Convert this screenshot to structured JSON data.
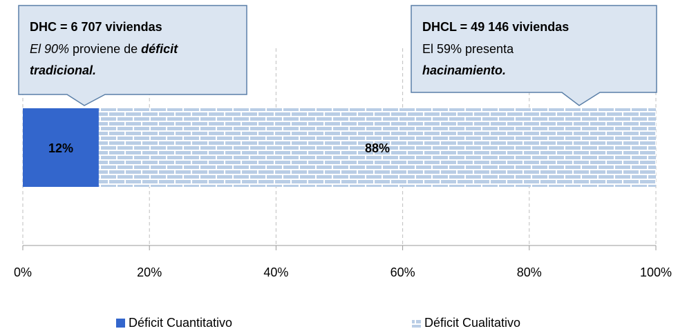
{
  "chart_data": {
    "type": "stacked_bar_horizontal",
    "categories": [
      null
    ],
    "series": [
      {
        "name": "Déficit Cuantitativo",
        "color": "#3366cc",
        "values": [
          12
        ],
        "value_labels": [
          "12%"
        ],
        "label_color": "#ffffff"
      },
      {
        "name": "Déficit Cualitativo",
        "color": "#b9cde5",
        "pattern": "brick",
        "values": [
          88
        ],
        "value_labels": [
          "88%"
        ],
        "label_color": "#000000"
      }
    ],
    "xlim": [
      0,
      100
    ],
    "xticks": [
      {
        "value": 0,
        "label": "0%"
      },
      {
        "value": 20,
        "label": "20%"
      },
      {
        "value": 40,
        "label": "40%"
      },
      {
        "value": 60,
        "label": "60%"
      },
      {
        "value": 80,
        "label": "80%"
      },
      {
        "value": 100,
        "label": "100%"
      }
    ],
    "grid": true,
    "legend": "bottom",
    "annotations": [
      {
        "title": "DHC = 6 707 viviendas",
        "lines": [
          [
            {
              "text": "El 90%",
              "style": "italic"
            },
            {
              "text": " proviene de ",
              "style": "normal"
            },
            {
              "text": "déficit",
              "style": "bold-italic"
            }
          ],
          [
            {
              "text": "tradicional.",
              "style": "bold-italic"
            }
          ]
        ]
      },
      {
        "title": "DHCL = 49 146 viviendas",
        "lines": [
          [
            {
              "text": "El 59% presenta",
              "style": "normal"
            }
          ],
          [
            {
              "text": "hacinamiento.",
              "style": "bold-italic"
            }
          ]
        ]
      }
    ]
  }
}
